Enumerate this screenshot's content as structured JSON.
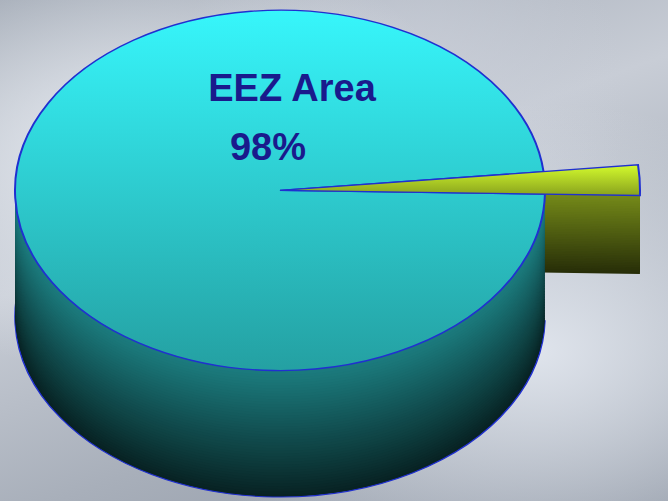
{
  "chart_data": {
    "type": "pie",
    "categories": [
      "EEZ Area",
      null
    ],
    "values": [
      98,
      2
    ],
    "value_labels": [
      "98%",
      null
    ],
    "colors": [
      "#33e4e8",
      "#c4e82a"
    ],
    "data_labels": true
  }
}
